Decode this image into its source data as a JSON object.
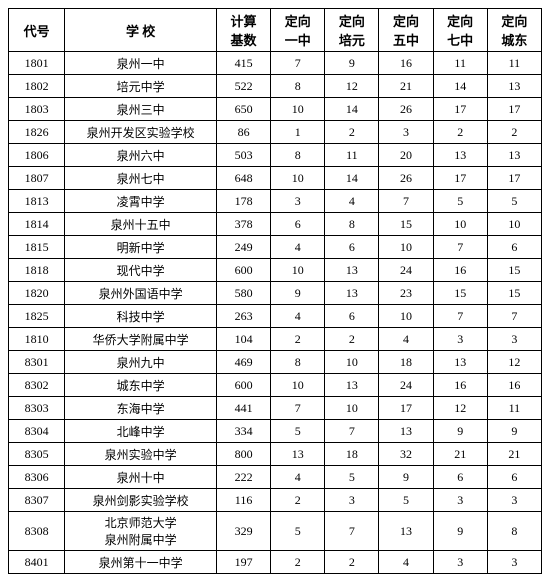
{
  "columns": [
    {
      "key": "code",
      "label": "代号"
    },
    {
      "key": "school",
      "label": "学 校"
    },
    {
      "key": "base",
      "label": "计算\n基数"
    },
    {
      "key": "c1",
      "label": "定向\n一中"
    },
    {
      "key": "c2",
      "label": "定向\n培元"
    },
    {
      "key": "c3",
      "label": "定向\n五中"
    },
    {
      "key": "c4",
      "label": "定向\n七中"
    },
    {
      "key": "c5",
      "label": "定向\n城东"
    }
  ],
  "rows": [
    {
      "code": "1801",
      "school": "泉州一中",
      "base": "415",
      "c1": "7",
      "c2": "9",
      "c3": "16",
      "c4": "11",
      "c5": "11"
    },
    {
      "code": "1802",
      "school": "培元中学",
      "base": "522",
      "c1": "8",
      "c2": "12",
      "c3": "21",
      "c4": "14",
      "c5": "13"
    },
    {
      "code": "1803",
      "school": "泉州三中",
      "base": "650",
      "c1": "10",
      "c2": "14",
      "c3": "26",
      "c4": "17",
      "c5": "17"
    },
    {
      "code": "1826",
      "school": "泉州开发区实验学校",
      "base": "86",
      "c1": "1",
      "c2": "2",
      "c3": "3",
      "c4": "2",
      "c5": "2"
    },
    {
      "code": "1806",
      "school": "泉州六中",
      "base": "503",
      "c1": "8",
      "c2": "11",
      "c3": "20",
      "c4": "13",
      "c5": "13"
    },
    {
      "code": "1807",
      "school": "泉州七中",
      "base": "648",
      "c1": "10",
      "c2": "14",
      "c3": "26",
      "c4": "17",
      "c5": "17"
    },
    {
      "code": "1813",
      "school": "凌霄中学",
      "base": "178",
      "c1": "3",
      "c2": "4",
      "c3": "7",
      "c4": "5",
      "c5": "5"
    },
    {
      "code": "1814",
      "school": "泉州十五中",
      "base": "378",
      "c1": "6",
      "c2": "8",
      "c3": "15",
      "c4": "10",
      "c5": "10"
    },
    {
      "code": "1815",
      "school": "明新中学",
      "base": "249",
      "c1": "4",
      "c2": "6",
      "c3": "10",
      "c4": "7",
      "c5": "6"
    },
    {
      "code": "1818",
      "school": "现代中学",
      "base": "600",
      "c1": "10",
      "c2": "13",
      "c3": "24",
      "c4": "16",
      "c5": "15"
    },
    {
      "code": "1820",
      "school": "泉州外国语中学",
      "base": "580",
      "c1": "9",
      "c2": "13",
      "c3": "23",
      "c4": "15",
      "c5": "15"
    },
    {
      "code": "1825",
      "school": "科技中学",
      "base": "263",
      "c1": "4",
      "c2": "6",
      "c3": "10",
      "c4": "7",
      "c5": "7"
    },
    {
      "code": "1810",
      "school": "华侨大学附属中学",
      "base": "104",
      "c1": "2",
      "c2": "2",
      "c3": "4",
      "c4": "3",
      "c5": "3"
    },
    {
      "code": "8301",
      "school": "泉州九中",
      "base": "469",
      "c1": "8",
      "c2": "10",
      "c3": "18",
      "c4": "13",
      "c5": "12"
    },
    {
      "code": "8302",
      "school": "城东中学",
      "base": "600",
      "c1": "10",
      "c2": "13",
      "c3": "24",
      "c4": "16",
      "c5": "16"
    },
    {
      "code": "8303",
      "school": "东海中学",
      "base": "441",
      "c1": "7",
      "c2": "10",
      "c3": "17",
      "c4": "12",
      "c5": "11"
    },
    {
      "code": "8304",
      "school": "北峰中学",
      "base": "334",
      "c1": "5",
      "c2": "7",
      "c3": "13",
      "c4": "9",
      "c5": "9"
    },
    {
      "code": "8305",
      "school": "泉州实验中学",
      "base": "800",
      "c1": "13",
      "c2": "18",
      "c3": "32",
      "c4": "21",
      "c5": "21"
    },
    {
      "code": "8306",
      "school": "泉州十中",
      "base": "222",
      "c1": "4",
      "c2": "5",
      "c3": "9",
      "c4": "6",
      "c5": "6"
    },
    {
      "code": "8307",
      "school": "泉州剑影实验学校",
      "base": "116",
      "c1": "2",
      "c2": "3",
      "c3": "5",
      "c4": "3",
      "c5": "3"
    },
    {
      "code": "8308",
      "school": "北京师范大学\n泉州附属中学",
      "base": "329",
      "c1": "5",
      "c2": "7",
      "c3": "13",
      "c4": "9",
      "c5": "8",
      "tall": true
    },
    {
      "code": "8401",
      "school": "泉州第十一中学",
      "base": "197",
      "c1": "2",
      "c2": "2",
      "c3": "4",
      "c4": "3",
      "c5": "3"
    }
  ]
}
